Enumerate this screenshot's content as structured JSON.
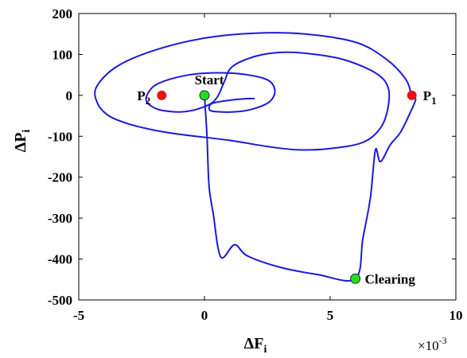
{
  "chart_data": {
    "type": "line",
    "title": "",
    "xlabel": {
      "main": "ΔF",
      "sub": "i"
    },
    "ylabel": {
      "main": "ΔP",
      "sub": "i"
    },
    "x_multiplier_label": {
      "base": "×10",
      "exp": "-3"
    },
    "xlim": [
      -5,
      10
    ],
    "ylim": [
      -500,
      200
    ],
    "x_ticks": [
      "-5",
      "0",
      "5",
      "10"
    ],
    "y_ticks": [
      "200",
      "100",
      "0",
      "-100",
      "-200",
      "-300",
      "-400",
      "-500"
    ],
    "grid": false,
    "series": [
      {
        "color": "#1a1adb",
        "points": [
          [
            0.0,
            0.0
          ],
          [
            0.1,
            -100
          ],
          [
            0.18,
            -220
          ],
          [
            0.35,
            -290
          ],
          [
            0.65,
            -395
          ],
          [
            1.2,
            -365
          ],
          [
            1.7,
            -392
          ],
          [
            3.0,
            -420
          ],
          [
            4.5,
            -438
          ],
          [
            6.0,
            -448
          ],
          [
            6.3,
            -350
          ],
          [
            6.6,
            -250
          ],
          [
            6.8,
            -133
          ],
          [
            7.0,
            -162
          ],
          [
            7.4,
            -120
          ],
          [
            7.8,
            -90
          ],
          [
            8.2,
            -40
          ],
          [
            8.4,
            -10
          ],
          [
            8.25,
            0
          ],
          [
            8.0,
            40
          ],
          [
            7.2,
            90
          ],
          [
            6.0,
            130
          ],
          [
            4.0,
            150
          ],
          [
            2.0,
            152
          ],
          [
            0.0,
            140
          ],
          [
            -2.0,
            110
          ],
          [
            -3.5,
            70
          ],
          [
            -4.3,
            20
          ],
          [
            -4.25,
            -20
          ],
          [
            -3.8,
            -50
          ],
          [
            -3.0,
            -70
          ],
          [
            -2.0,
            -85
          ],
          [
            -1.0,
            -95
          ],
          [
            1.0,
            -110
          ],
          [
            2.5,
            -125
          ],
          [
            3.7,
            -133
          ],
          [
            5.0,
            -130
          ],
          [
            6.3,
            -115
          ],
          [
            7.0,
            -80
          ],
          [
            7.3,
            -30
          ],
          [
            7.3,
            20
          ],
          [
            6.8,
            55
          ],
          [
            5.5,
            88
          ],
          [
            4.0,
            103
          ],
          [
            3.0,
            105
          ],
          [
            2.0,
            95
          ],
          [
            1.1,
            70
          ],
          [
            0.8,
            35
          ],
          [
            0.5,
            -5
          ],
          [
            0.1,
            -25
          ],
          [
            -0.8,
            -40
          ],
          [
            -1.8,
            -35
          ],
          [
            -2.3,
            -15
          ],
          [
            -2.2,
            10
          ],
          [
            -1.8,
            30
          ],
          [
            -0.8,
            48
          ],
          [
            0.3,
            55
          ],
          [
            1.5,
            52
          ],
          [
            2.5,
            38
          ],
          [
            2.8,
            12
          ],
          [
            2.6,
            -15
          ],
          [
            2.0,
            -32
          ],
          [
            1.3,
            -40
          ],
          [
            0.5,
            -40
          ],
          [
            0.2,
            -35
          ],
          [
            0.3,
            -20
          ],
          [
            1.0,
            -12
          ],
          [
            1.7,
            -8
          ],
          [
            2.0,
            -8
          ]
        ]
      }
    ],
    "markers": [
      {
        "name": "start",
        "label": "Start",
        "x": 0.0,
        "y": 0,
        "color": "#22dd22"
      },
      {
        "name": "clearing",
        "label": "Clearing",
        "x": 6.0,
        "y": -448,
        "color": "#22dd22"
      },
      {
        "name": "p1",
        "label": "P",
        "sub": "1",
        "x": 8.25,
        "y": 0,
        "color": "#ee1111"
      },
      {
        "name": "p2",
        "label": "P",
        "sub": "2",
        "x": -1.7,
        "y": 0,
        "color": "#ee1111"
      }
    ]
  }
}
